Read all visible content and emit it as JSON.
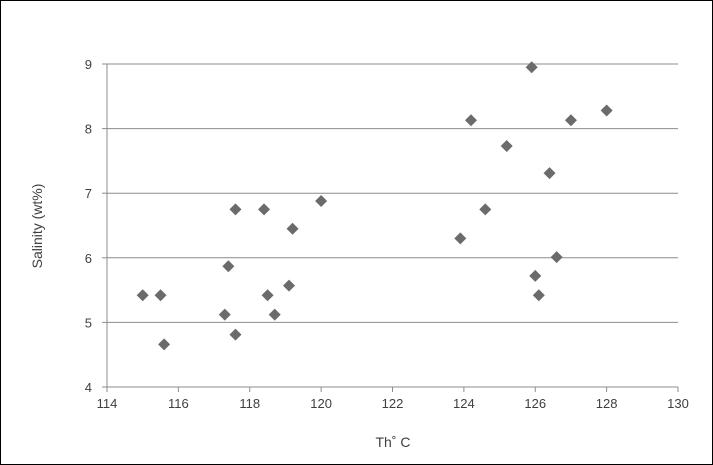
{
  "chart_data": {
    "type": "scatter",
    "title": "",
    "xlabel": "Th˚ C",
    "ylabel": "Salinity (wt%)",
    "xlim": [
      114,
      130
    ],
    "ylim": [
      4,
      9
    ],
    "x_ticks": [
      114,
      116,
      118,
      120,
      122,
      124,
      126,
      128,
      130
    ],
    "y_ticks": [
      4,
      5,
      6,
      7,
      8,
      9
    ],
    "grid": {
      "horizontal": true,
      "vertical": false
    },
    "legend": "none",
    "marker": "diamond",
    "marker_color": "#6b6b6b",
    "points": [
      {
        "x": 115.0,
        "y": 5.42
      },
      {
        "x": 115.5,
        "y": 5.42
      },
      {
        "x": 115.6,
        "y": 4.66
      },
      {
        "x": 117.3,
        "y": 5.12
      },
      {
        "x": 117.4,
        "y": 5.87
      },
      {
        "x": 117.6,
        "y": 6.75
      },
      {
        "x": 117.6,
        "y": 4.81
      },
      {
        "x": 118.4,
        "y": 6.75
      },
      {
        "x": 118.5,
        "y": 5.42
      },
      {
        "x": 118.7,
        "y": 5.12
      },
      {
        "x": 119.1,
        "y": 5.57
      },
      {
        "x": 119.2,
        "y": 6.45
      },
      {
        "x": 120.0,
        "y": 6.88
      },
      {
        "x": 123.9,
        "y": 6.3
      },
      {
        "x": 124.2,
        "y": 8.13
      },
      {
        "x": 124.6,
        "y": 6.75
      },
      {
        "x": 125.2,
        "y": 7.73
      },
      {
        "x": 125.9,
        "y": 8.95
      },
      {
        "x": 126.0,
        "y": 5.72
      },
      {
        "x": 126.1,
        "y": 5.42
      },
      {
        "x": 126.4,
        "y": 7.31
      },
      {
        "x": 126.6,
        "y": 6.01
      },
      {
        "x": 127.0,
        "y": 8.13
      },
      {
        "x": 128.0,
        "y": 8.28
      }
    ]
  }
}
